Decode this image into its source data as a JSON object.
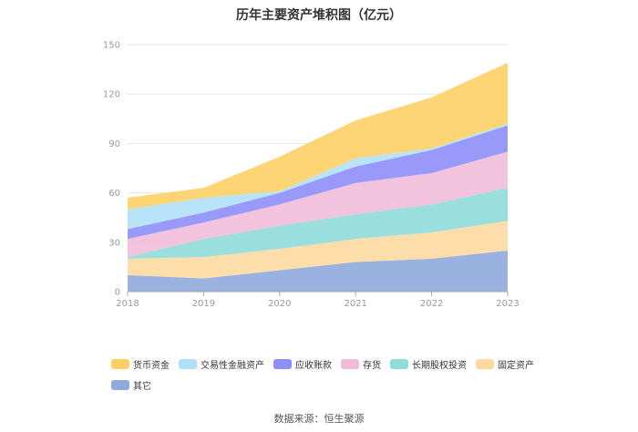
{
  "chart_data": {
    "type": "area",
    "title": "历年主要资产堆积图（亿元）",
    "x": [
      "2018",
      "2019",
      "2020",
      "2021",
      "2022",
      "2023"
    ],
    "ylim": [
      0,
      150
    ],
    "yticks": [
      0,
      30,
      60,
      90,
      120,
      150
    ],
    "stacked": true,
    "grid": true,
    "legend_position": "bottom",
    "series": [
      {
        "name": "其它",
        "color": "#8faadc",
        "values": [
          10,
          8,
          13,
          18,
          20,
          25
        ]
      },
      {
        "name": "固定资产",
        "color": "#fdd9a0",
        "values": [
          10,
          13,
          13,
          14,
          16,
          18
        ]
      },
      {
        "name": "长期股权投资",
        "color": "#8fdcd9",
        "values": [
          1,
          11,
          14,
          15,
          17,
          20
        ]
      },
      {
        "name": "存货",
        "color": "#f0bcd8",
        "values": [
          11,
          10,
          13,
          19,
          19,
          22
        ]
      },
      {
        "name": "应收账款",
        "color": "#8d8ef7",
        "values": [
          6,
          6,
          7,
          10,
          14,
          16
        ]
      },
      {
        "name": "交易性金融资产",
        "color": "#b0e0f7",
        "values": [
          12,
          9,
          1,
          5,
          1,
          1
        ]
      },
      {
        "name": "货币资金",
        "color": "#fdd066",
        "values": [
          7,
          6,
          21,
          23,
          31,
          37
        ]
      }
    ]
  },
  "legend_order": [
    "货币资金",
    "交易性金融资产",
    "应收账款",
    "存货",
    "长期股权投资",
    "固定资产",
    "其它"
  ],
  "source": "数据来源：恒生聚源"
}
